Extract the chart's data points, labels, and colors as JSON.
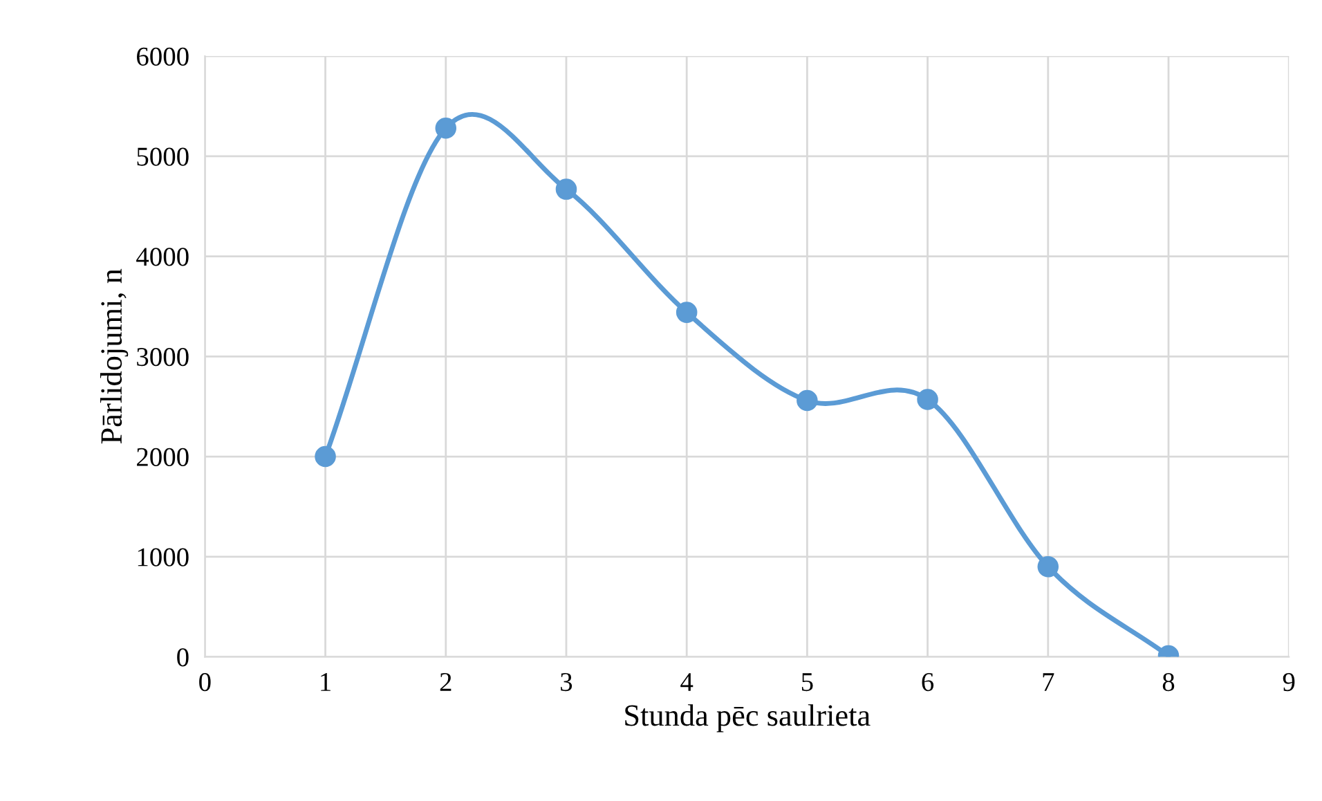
{
  "chart_data": {
    "type": "line",
    "xlabel": "Stunda pēc saulrieta",
    "ylabel": "Pārlidojumi, n",
    "x": [
      1,
      2,
      3,
      4,
      5,
      6,
      7,
      8
    ],
    "series": [
      {
        "color": "#5b9bd5",
        "values": [
          2000,
          5280,
          4670,
          3440,
          2560,
          2570,
          900,
          10
        ]
      }
    ],
    "xlim": [
      0,
      9
    ],
    "xticks": [
      0,
      1,
      2,
      3,
      4,
      5,
      6,
      7,
      8,
      9
    ],
    "ylim": [
      0,
      6000
    ],
    "yticks": [
      0,
      1000,
      2000,
      3000,
      4000,
      5000,
      6000
    ],
    "grid": true,
    "marker": "circle",
    "line_style": "solid"
  }
}
